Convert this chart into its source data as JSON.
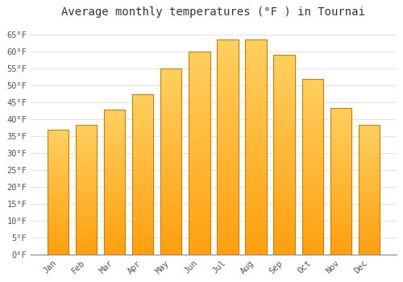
{
  "title": "Average monthly temperatures (°F ) in Tournai",
  "months": [
    "Jan",
    "Feb",
    "Mar",
    "Apr",
    "May",
    "Jun",
    "Jul",
    "Aug",
    "Sep",
    "Oct",
    "Nov",
    "Dec"
  ],
  "values": [
    37,
    38.5,
    43,
    47.5,
    55,
    60,
    63.5,
    63.5,
    59,
    52,
    43.5,
    38.5
  ],
  "bar_color_light": "#FFD060",
  "bar_color_dark": "#FFA010",
  "bar_edge_color": "#CC8000",
  "background_color": "#FFFFFF",
  "plot_bg_color": "#FFFFFF",
  "ylim": [
    0,
    68
  ],
  "yticks": [
    0,
    5,
    10,
    15,
    20,
    25,
    30,
    35,
    40,
    45,
    50,
    55,
    60,
    65
  ],
  "ytick_labels": [
    "0°F",
    "5°F",
    "10°F",
    "15°F",
    "20°F",
    "25°F",
    "30°F",
    "35°F",
    "40°F",
    "45°F",
    "50°F",
    "55°F",
    "60°F",
    "65°F"
  ],
  "title_fontsize": 10,
  "tick_fontsize": 7.5,
  "grid_color": "#DDDDDD",
  "tick_color": "#555555"
}
